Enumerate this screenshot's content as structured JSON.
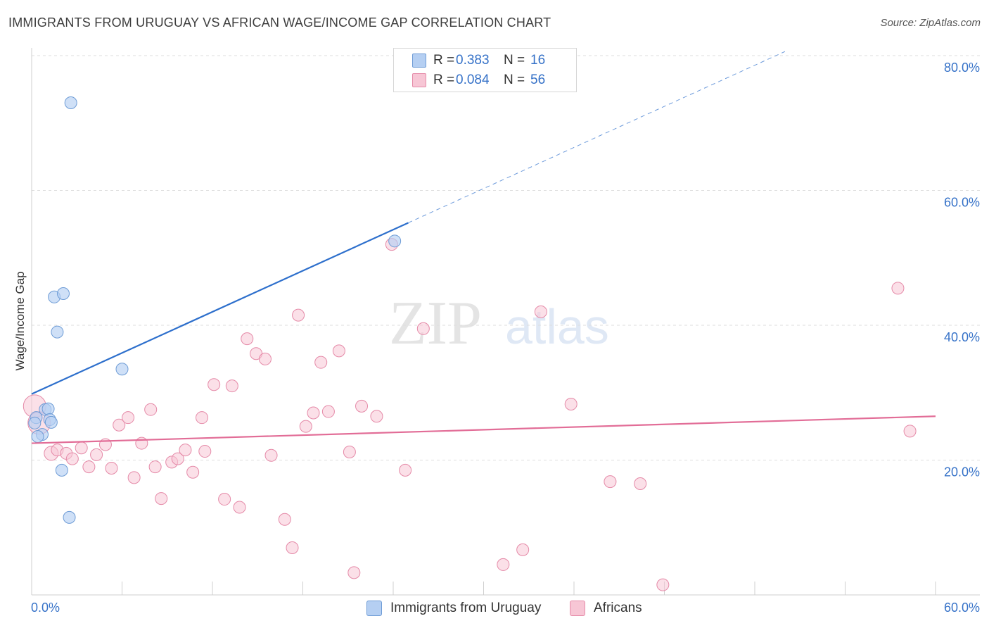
{
  "header": {
    "title": "IMMIGRANTS FROM URUGUAY VS AFRICAN WAGE/INCOME GAP CORRELATION CHART",
    "source": "Source: ZipAtlas.com"
  },
  "watermark": {
    "zip": "ZIP",
    "atlas": "atlas"
  },
  "legend": {
    "rows": [
      {
        "r_label": "R =",
        "r_value": "0.383",
        "n_label": "N =",
        "n_value": "16",
        "color": "#a9c8f0",
        "edge": "#6f9fdb"
      },
      {
        "r_label": "R =",
        "r_value": "0.084",
        "n_label": "N =",
        "n_value": "56",
        "color": "#f7c2d2",
        "edge": "#e98fae"
      }
    ]
  },
  "bottom_legend": {
    "items": [
      "Immigrants from Uruguay",
      "Africans"
    ]
  },
  "chart_data": {
    "type": "scatter",
    "title": "IMMIGRANTS FROM URUGUAY VS AFRICAN WAGE/INCOME GAP CORRELATION CHART",
    "ylabel": "Wage/Income Gap",
    "xlim": [
      0,
      60
    ],
    "ylim": [
      0,
      80
    ],
    "x_tick_labels": [
      "0.0%",
      "60.0%"
    ],
    "y_tick_labels": [
      "20.0%",
      "40.0%",
      "60.0%",
      "80.0%"
    ],
    "y_ticks": [
      20,
      40,
      60,
      80
    ],
    "grid": true,
    "legend_position": "top-center",
    "colors": {
      "uruguay_fill": "#b5cff2",
      "uruguay_edge": "#6e9cd6",
      "uruguay_line": "#2d6fcc",
      "africans_fill": "#f7c6d5",
      "africans_edge": "#e58aa8",
      "africans_line": "#e26d97",
      "tick_text": "#3672c8"
    },
    "series": [
      {
        "name": "Immigrants from Uruguay",
        "points": [
          [
            2.6,
            73.0
          ],
          [
            1.5,
            44.2
          ],
          [
            2.1,
            44.7
          ],
          [
            1.7,
            39.0
          ],
          [
            6.0,
            33.5
          ],
          [
            24.1,
            52.5
          ],
          [
            0.3,
            26.3
          ],
          [
            0.9,
            27.5
          ],
          [
            1.1,
            27.6
          ],
          [
            1.2,
            26.0
          ],
          [
            1.3,
            25.6
          ],
          [
            0.7,
            23.8
          ],
          [
            2.0,
            18.5
          ],
          [
            2.5,
            11.5
          ],
          [
            0.2,
            25.5
          ],
          [
            0.4,
            23.5
          ]
        ],
        "trend": {
          "x": [
            0,
            25
          ],
          "y": [
            29.8,
            55.2
          ],
          "dashed_to": {
            "x": 50,
            "y": 80.6
          }
        }
      },
      {
        "name": "Africans",
        "points": [
          [
            0.2,
            28.0
          ],
          [
            0.5,
            25.5
          ],
          [
            1.3,
            21.0
          ],
          [
            1.7,
            21.5
          ],
          [
            2.3,
            21.0
          ],
          [
            2.7,
            20.2
          ],
          [
            3.3,
            21.8
          ],
          [
            3.8,
            19.0
          ],
          [
            4.3,
            20.8
          ],
          [
            4.9,
            22.3
          ],
          [
            5.3,
            18.8
          ],
          [
            5.8,
            25.2
          ],
          [
            6.4,
            26.3
          ],
          [
            6.8,
            17.4
          ],
          [
            7.3,
            22.5
          ],
          [
            7.9,
            27.5
          ],
          [
            8.2,
            19.0
          ],
          [
            8.6,
            14.3
          ],
          [
            9.3,
            19.7
          ],
          [
            9.7,
            20.2
          ],
          [
            10.2,
            21.5
          ],
          [
            10.7,
            18.2
          ],
          [
            11.3,
            26.3
          ],
          [
            11.5,
            21.3
          ],
          [
            12.1,
            31.2
          ],
          [
            12.8,
            14.2
          ],
          [
            13.3,
            31.0
          ],
          [
            13.8,
            13.0
          ],
          [
            14.3,
            38.0
          ],
          [
            14.9,
            35.8
          ],
          [
            15.5,
            35.0
          ],
          [
            15.9,
            20.7
          ],
          [
            16.8,
            11.2
          ],
          [
            17.3,
            7.0
          ],
          [
            17.7,
            41.5
          ],
          [
            18.2,
            25.0
          ],
          [
            18.7,
            27.0
          ],
          [
            19.2,
            34.5
          ],
          [
            19.7,
            27.2
          ],
          [
            20.4,
            36.2
          ],
          [
            21.1,
            21.2
          ],
          [
            21.4,
            3.3
          ],
          [
            21.9,
            28.0
          ],
          [
            22.9,
            26.5
          ],
          [
            23.9,
            52.0
          ],
          [
            24.8,
            18.5
          ],
          [
            26.0,
            39.5
          ],
          [
            31.3,
            4.5
          ],
          [
            32.6,
            6.7
          ],
          [
            33.8,
            42.0
          ],
          [
            35.8,
            28.3
          ],
          [
            38.4,
            16.8
          ],
          [
            40.4,
            16.5
          ],
          [
            41.9,
            1.5
          ],
          [
            57.5,
            45.5
          ],
          [
            58.3,
            24.3
          ]
        ],
        "trend": {
          "x": [
            0,
            60
          ],
          "y": [
            22.5,
            26.5
          ]
        }
      }
    ]
  }
}
